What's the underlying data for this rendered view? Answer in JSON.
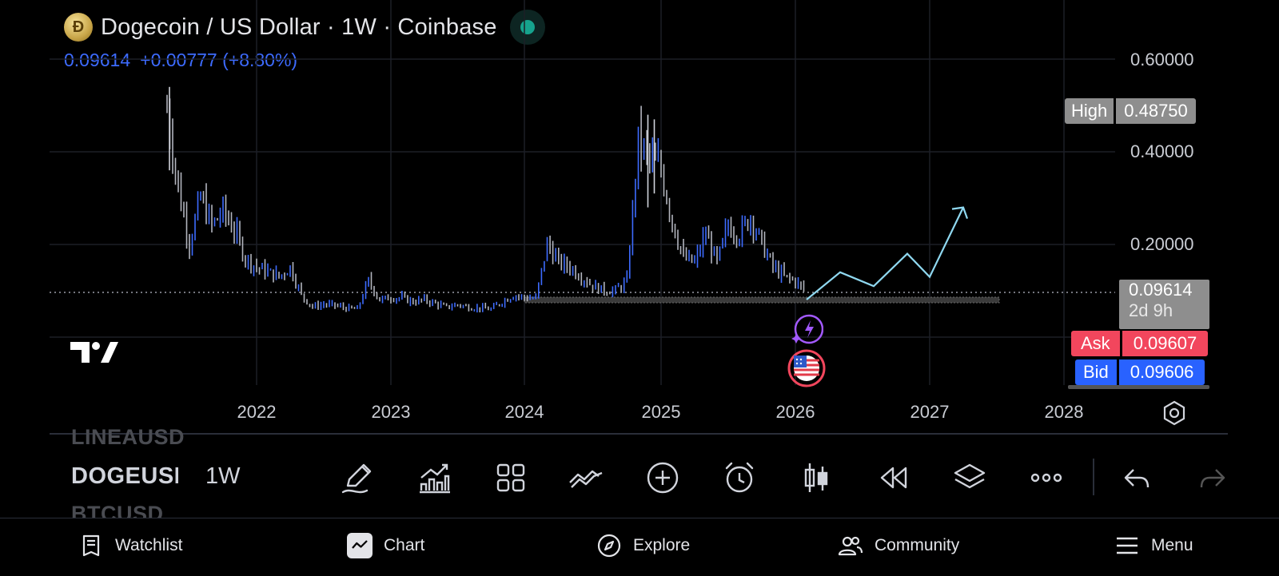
{
  "header": {
    "title": "Dogecoin / US Dollar · 1W · Coinbase",
    "last_price": "0.09614",
    "change": "+0.00777 (+8.80%)",
    "logo_icon": "dogecoin-logo",
    "status_icon": "market-open-dot"
  },
  "price_scale": {
    "labels": [
      "0.60000",
      "0.40000",
      "0.20000"
    ],
    "high_label": "High",
    "high_value": "0.48750",
    "last_value": "0.09614",
    "countdown": "2d 9h",
    "ask_label": "Ask",
    "ask_value": "0.09607",
    "bid_label": "Bid",
    "bid_value": "0.09606"
  },
  "time_scale": {
    "labels": [
      "2022",
      "2023",
      "2024",
      "2025",
      "2026",
      "2027",
      "2028"
    ]
  },
  "chart_data": {
    "type": "bar",
    "symbol": "DOGEUSD",
    "interval": "1W",
    "x_range": [
      "2021-05",
      "2028-01"
    ],
    "y_scale": "log",
    "ylim": [
      0.06,
      0.7
    ],
    "series": [
      {
        "name": "price-history",
        "points": [
          [
            "2021-05",
            0.49
          ],
          [
            "2021-06",
            0.32
          ],
          [
            "2021-07",
            0.2
          ],
          [
            "2021-08",
            0.3
          ],
          [
            "2021-09",
            0.24
          ],
          [
            "2021-10",
            0.27
          ],
          [
            "2021-11",
            0.23
          ],
          [
            "2021-12",
            0.17
          ],
          [
            "2022-01",
            0.15
          ],
          [
            "2022-02",
            0.14
          ],
          [
            "2022-03",
            0.13
          ],
          [
            "2022-04",
            0.15
          ],
          [
            "2022-05",
            0.09
          ],
          [
            "2022-06",
            0.065
          ],
          [
            "2022-07",
            0.07
          ],
          [
            "2022-08",
            0.068
          ],
          [
            "2022-09",
            0.062
          ],
          [
            "2022-10",
            0.06
          ],
          [
            "2022-11",
            0.12
          ],
          [
            "2022-12",
            0.08
          ],
          [
            "2023-01",
            0.085
          ],
          [
            "2023-02",
            0.084
          ],
          [
            "2023-03",
            0.076
          ],
          [
            "2023-04",
            0.08
          ],
          [
            "2023-05",
            0.072
          ],
          [
            "2023-06",
            0.064
          ],
          [
            "2023-07",
            0.07
          ],
          [
            "2023-08",
            0.064
          ],
          [
            "2023-09",
            0.062
          ],
          [
            "2023-10",
            0.06
          ],
          [
            "2023-11",
            0.076
          ],
          [
            "2023-12",
            0.09
          ],
          [
            "2024-01",
            0.085
          ],
          [
            "2024-02",
            0.083
          ],
          [
            "2024-03",
            0.2
          ],
          [
            "2024-04",
            0.16
          ],
          [
            "2024-05",
            0.15
          ],
          [
            "2024-06",
            0.13
          ],
          [
            "2024-07",
            0.11
          ],
          [
            "2024-08",
            0.1
          ],
          [
            "2024-09",
            0.1
          ],
          [
            "2024-10",
            0.12
          ],
          [
            "2024-11",
            0.42
          ],
          [
            "2024-12",
            0.38
          ],
          [
            "2025-01",
            0.36
          ],
          [
            "2025-02",
            0.25
          ],
          [
            "2025-03",
            0.17
          ],
          [
            "2025-04",
            0.16
          ],
          [
            "2025-05",
            0.22
          ],
          [
            "2025-06",
            0.16
          ],
          [
            "2025-07",
            0.24
          ],
          [
            "2025-08",
            0.22
          ],
          [
            "2025-09",
            0.26
          ],
          [
            "2025-10",
            0.2
          ],
          [
            "2025-11",
            0.15
          ],
          [
            "2025-12",
            0.13
          ],
          [
            "2026-01",
            0.12
          ],
          [
            "2026-02",
            0.096
          ]
        ]
      },
      {
        "name": "projection-drawing",
        "points": [
          [
            "2026-02",
            0.096
          ],
          [
            "2026-05",
            0.14
          ],
          [
            "2026-08",
            0.11
          ],
          [
            "2026-11",
            0.18
          ],
          [
            "2027-01",
            0.13
          ],
          [
            "2027-04",
            0.28
          ]
        ]
      }
    ],
    "horizontal_line": 0.09614,
    "support_zone": [
      0.092,
      0.096
    ],
    "grid": true,
    "colors": {
      "up": "#3d6bff",
      "down": "#b2b5be",
      "projection": "#8fd8f0"
    }
  },
  "symbol_wheel": {
    "previous": "LINEAUSD",
    "current": "DOGEUSD",
    "next": "BTCUSD",
    "interval": "1W"
  },
  "toolbar": {
    "tools": [
      {
        "name": "drawing-tools",
        "icon": "pencil-icon"
      },
      {
        "name": "indicators",
        "icon": "indicators-icon"
      },
      {
        "name": "layouts",
        "icon": "grid-icon"
      },
      {
        "name": "compare",
        "icon": "compare-icon"
      },
      {
        "name": "add",
        "icon": "plus-circle-icon"
      },
      {
        "name": "alert",
        "icon": "alarm-icon"
      },
      {
        "name": "chart-type",
        "icon": "candles-icon"
      },
      {
        "name": "replay",
        "icon": "replay-icon"
      },
      {
        "name": "object-tree",
        "icon": "layers-icon"
      },
      {
        "name": "more",
        "icon": "more-icon"
      },
      {
        "name": "undo",
        "icon": "undo-icon"
      },
      {
        "name": "redo",
        "icon": "redo-icon"
      }
    ]
  },
  "bottom_nav": {
    "watchlist": "Watchlist",
    "chart": "Chart",
    "explore": "Explore",
    "community": "Community",
    "menu": "Menu"
  }
}
